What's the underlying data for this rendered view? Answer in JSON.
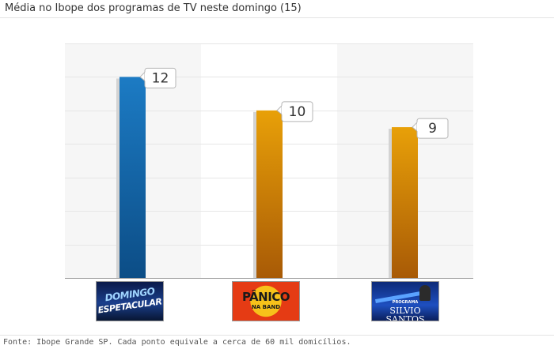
{
  "title": "Média no Ibope dos programas de TV neste domingo (15)",
  "footer": "Fonte: Ibope Grande SP. Cada ponto equivale a cerca de 60 mil domicílios.",
  "chart_data": {
    "type": "bar",
    "title": "Média no Ibope dos programas de TV neste domingo (15)",
    "categories": [
      "Domingo Espetacular",
      "Pânico na Band",
      "Programa Silvio Santos"
    ],
    "values": [
      12,
      10,
      9
    ],
    "ylim": [
      0,
      14
    ],
    "grid": true,
    "legend": "none",
    "colors": [
      "#1a6eb0",
      "#e09408",
      "#e09408"
    ],
    "data_labels": [
      "12",
      "10",
      "9"
    ]
  },
  "logos": {
    "domingo": {
      "line1": "DOMINGO",
      "line2": "ESPETACULAR"
    },
    "panico": {
      "line1": "PÂNICO",
      "line2": "NA BAND"
    },
    "silvio": {
      "line1": "PROGRAMA",
      "line2": "SILVIO SANTOS"
    }
  }
}
